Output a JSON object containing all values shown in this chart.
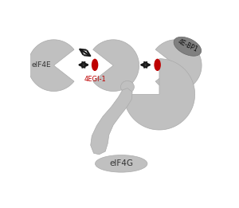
{
  "bg_color": "#ffffff",
  "gray_color": "#c0c0c0",
  "dark_gray": "#808080",
  "red_color": "#be0000",
  "arrow_color": "#1a1a1a",
  "figsize": [
    3.0,
    2.61
  ],
  "dpi": 100,
  "eIF4E_label": "eIF4E",
  "eIF4G_label": "eIF4G",
  "label_4EGI": "4EGI-1",
  "label_4EBP1": "4E-BP1"
}
